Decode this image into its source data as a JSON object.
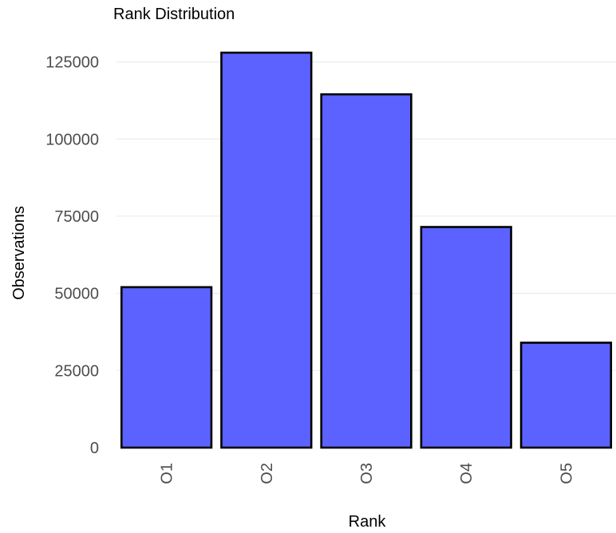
{
  "chart_data": {
    "type": "bar",
    "title": "Rank Distribution",
    "xlabel": "Rank",
    "ylabel": "Observations",
    "categories": [
      "O1",
      "O2",
      "O3",
      "O4",
      "O5"
    ],
    "values": [
      52000,
      128000,
      114500,
      71500,
      34000
    ],
    "ylim": [
      0,
      128000
    ],
    "yticks": [
      0,
      25000,
      50000,
      75000,
      100000,
      125000
    ],
    "ytick_labels": [
      "0",
      "25000",
      "50000",
      "75000",
      "100000",
      "125000"
    ],
    "x_tick_rotation": "vertical",
    "grid": true,
    "legend": "none",
    "colors": {
      "bar_fill": "#5b62ff",
      "bar_outline": "#000000",
      "grid": "#ebebeb",
      "tick_text": "#4d4d4d"
    }
  }
}
